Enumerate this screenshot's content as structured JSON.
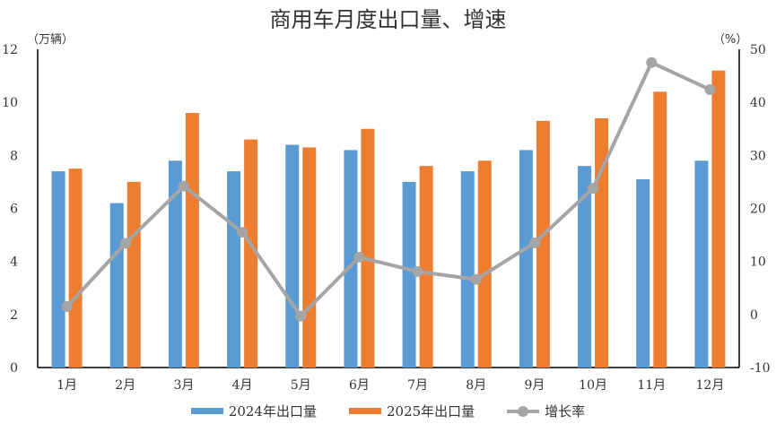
{
  "title": "商用车月度出口量、增速",
  "left_axis": {
    "unit": "（万辆）",
    "ticks": [
      "0",
      "2",
      "4",
      "6",
      "8",
      "10",
      "12"
    ]
  },
  "right_axis": {
    "unit": "（%）",
    "ticks": [
      "-10",
      "0",
      "10",
      "20",
      "30",
      "40",
      "50"
    ]
  },
  "legend": [
    {
      "label": "2024年出口量",
      "color": "#5b9bd5"
    },
    {
      "label": "2025年出口量",
      "color": "#ed7d31"
    },
    {
      "label": "增长率",
      "color": "#a5a5a5"
    }
  ],
  "colors": {
    "series2024": "#5b9bd5",
    "series2025": "#ed7d31",
    "growth": "#a5a5a5",
    "negative_tick": "#ff0000"
  },
  "chart_data": {
    "type": "bar",
    "title": "商用车月度出口量、增速",
    "categories": [
      "1月",
      "2月",
      "3月",
      "4月",
      "5月",
      "6月",
      "7月",
      "8月",
      "9月",
      "10月",
      "11月",
      "12月"
    ],
    "series": [
      {
        "name": "2024年出口量",
        "type": "bar",
        "axis": "left",
        "values": [
          7.4,
          6.2,
          7.8,
          7.4,
          8.4,
          8.2,
          7.0,
          7.4,
          8.2,
          7.6,
          7.1,
          7.8
        ]
      },
      {
        "name": "2025年出口量",
        "type": "bar",
        "axis": "left",
        "values": [
          7.5,
          7.0,
          9.6,
          8.6,
          8.3,
          9.0,
          7.6,
          7.8,
          9.3,
          9.4,
          10.4,
          11.2
        ]
      },
      {
        "name": "增长率",
        "type": "line",
        "axis": "right",
        "values": [
          1.5,
          13.4,
          24.2,
          15.5,
          -0.3,
          10.8,
          8.1,
          6.6,
          13.5,
          23.8,
          47.5,
          42.4
        ]
      }
    ],
    "xlabel": "",
    "ylabel": "（万辆）",
    "ylabel_right": "（%）",
    "ylim": [
      0,
      12
    ],
    "ylim_right": [
      -10,
      50
    ],
    "grid": false,
    "legend_position": "bottom"
  }
}
